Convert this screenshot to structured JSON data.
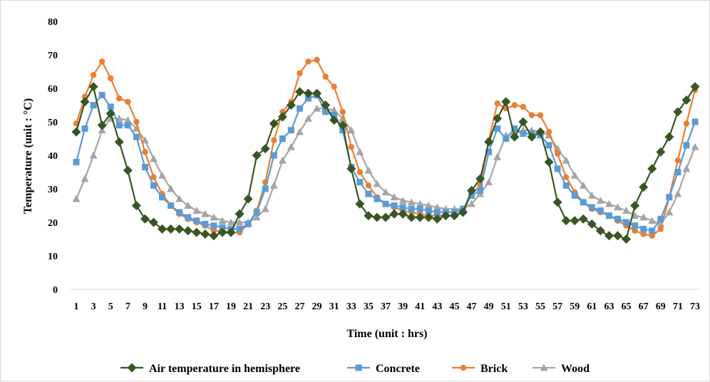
{
  "chart_data": {
    "type": "line",
    "title": "",
    "xlabel": "Time (unit : hrs)",
    "ylabel": "Temperature (unit : °C)",
    "ylim": [
      0,
      80
    ],
    "yticks": [
      0,
      10,
      20,
      30,
      40,
      50,
      60,
      70,
      80
    ],
    "xticks": [
      1,
      3,
      5,
      7,
      9,
      11,
      13,
      15,
      17,
      19,
      21,
      23,
      25,
      27,
      29,
      31,
      33,
      35,
      37,
      39,
      41,
      43,
      45,
      47,
      49,
      51,
      53,
      55,
      57,
      59,
      61,
      63,
      65,
      67,
      69,
      71,
      73
    ],
    "grid": false,
    "legend_position": "bottom",
    "x": [
      1,
      2,
      3,
      4,
      5,
      6,
      7,
      8,
      9,
      10,
      11,
      12,
      13,
      14,
      15,
      16,
      17,
      18,
      19,
      20,
      21,
      22,
      23,
      24,
      25,
      26,
      27,
      28,
      29,
      30,
      31,
      32,
      33,
      34,
      35,
      36,
      37,
      38,
      39,
      40,
      41,
      42,
      43,
      44,
      45,
      46,
      47,
      48,
      49,
      50,
      51,
      52,
      53,
      54,
      55,
      56,
      57,
      58,
      59,
      60,
      61,
      62,
      63,
      64,
      65,
      66,
      67,
      68,
      69,
      70,
      71,
      72,
      73
    ],
    "series": [
      {
        "name": "Air temperature in hemisphere",
        "color": "#375623",
        "marker": "diamond",
        "values": [
          47,
          56,
          60.5,
          49,
          52.5,
          44,
          35.5,
          25,
          21,
          20,
          18,
          18,
          18,
          17.5,
          17,
          16.5,
          16,
          17,
          17,
          22.5,
          27,
          40,
          42,
          49.5,
          51.5,
          55,
          59,
          58.5,
          58.5,
          55,
          50.5,
          49,
          36,
          25.5,
          22,
          21.5,
          21.5,
          22.5,
          22.5,
          21.5,
          21.5,
          21.5,
          21,
          22,
          22,
          23,
          29.5,
          33,
          44,
          51,
          56,
          45.5,
          50,
          45.5,
          47,
          38,
          26,
          20.5,
          20.5,
          21,
          19.5,
          17.5,
          16,
          16,
          15,
          25,
          30.5,
          36,
          41,
          45.5,
          53,
          56.5,
          60.5
        ]
      },
      {
        "name": "Concrete",
        "color": "#5b9bd5",
        "marker": "square",
        "values": [
          38,
          48,
          55,
          58,
          54.5,
          49,
          49,
          45.5,
          36.5,
          31,
          27.5,
          25,
          23,
          21.5,
          20.5,
          19.5,
          19,
          18.5,
          18,
          18,
          19.5,
          23,
          30,
          40,
          45,
          47.5,
          54,
          57,
          58,
          53,
          52,
          47.5,
          36.5,
          32,
          28.5,
          27,
          25.5,
          25,
          24.5,
          24,
          24,
          23.5,
          23,
          23,
          23,
          24,
          28,
          29.5,
          41,
          48,
          45,
          48,
          46.5,
          46.5,
          46,
          43,
          36,
          31,
          28,
          26,
          24.5,
          23.5,
          22,
          21,
          20,
          19,
          18,
          17.5,
          21,
          27.5,
          35,
          43,
          50
        ]
      },
      {
        "name": "Brick",
        "color": "#ed7d31",
        "marker": "circle",
        "values": [
          49.5,
          57.5,
          64,
          68,
          63,
          57,
          56,
          50,
          41,
          33.5,
          28.5,
          25,
          22.5,
          21,
          20,
          19,
          17.5,
          17.5,
          17,
          17,
          19.5,
          23.5,
          32,
          44.5,
          53,
          56,
          64.5,
          68,
          68.5,
          63.5,
          60.5,
          53,
          42.5,
          35,
          31,
          27.5,
          25.5,
          24.5,
          23.5,
          23,
          22.5,
          22,
          22,
          22,
          22,
          23,
          28.5,
          31,
          44.5,
          55.5,
          54,
          55,
          54.5,
          52,
          52,
          47,
          40.5,
          33.5,
          29,
          26,
          24,
          23,
          22,
          20.5,
          19,
          17.5,
          16.5,
          16,
          18,
          27.5,
          38.5,
          49.5,
          59.5
        ]
      },
      {
        "name": "Wood",
        "color": "#a5a5a5",
        "marker": "triangle",
        "values": [
          27,
          33,
          40,
          47.5,
          51,
          51,
          50.5,
          48,
          44.5,
          39,
          34,
          30,
          27,
          25,
          23.5,
          22.5,
          21.5,
          20.5,
          20,
          20,
          20,
          21.5,
          24,
          31,
          38.5,
          42.5,
          47,
          51,
          54,
          54,
          53.5,
          51,
          47.5,
          41,
          35.5,
          31.5,
          29,
          27.5,
          26.5,
          26,
          25.5,
          25,
          24.5,
          24,
          24,
          24,
          25.5,
          28.5,
          32,
          39.5,
          46,
          46.5,
          47.5,
          47.5,
          47,
          46,
          42,
          38.5,
          34,
          31,
          28,
          26.5,
          25.5,
          24.5,
          23.5,
          22,
          21.5,
          20.5,
          19.5,
          23,
          28.5,
          36,
          42.5
        ]
      }
    ]
  }
}
